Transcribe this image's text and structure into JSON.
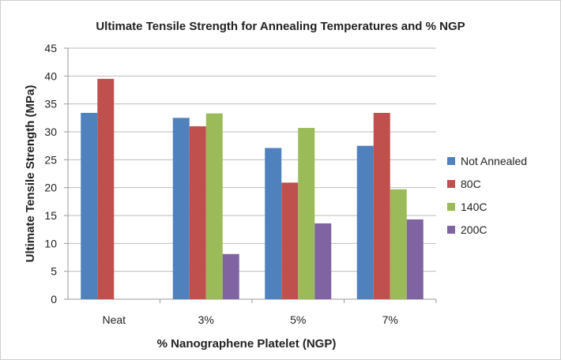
{
  "chart_data": {
    "type": "bar",
    "title": "Ultimate Tensile Strength for Annealing Temperatures and % NGP",
    "xlabel": "% Nanographene Platelet (NGP)",
    "ylabel": "Ultimate Tensile Strength (MPa)",
    "categories": [
      "Neat",
      "3%",
      "5%",
      "7%"
    ],
    "ylim": [
      0,
      45
    ],
    "yticks": [
      0,
      5,
      10,
      15,
      20,
      25,
      30,
      35,
      40,
      45
    ],
    "grid": true,
    "legend_position": "right",
    "series": [
      {
        "name": "Not Annealed",
        "color": "#4f81bd",
        "values": [
          33.4,
          32.5,
          27.1,
          27.5
        ]
      },
      {
        "name": "80C",
        "color": "#c0504d",
        "values": [
          39.5,
          31.0,
          20.9,
          33.4
        ]
      },
      {
        "name": "140C",
        "color": "#9bbb59",
        "values": [
          null,
          33.3,
          30.7,
          19.7
        ]
      },
      {
        "name": "200C",
        "color": "#8064a2",
        "values": [
          null,
          8.1,
          13.6,
          14.3
        ]
      }
    ]
  }
}
